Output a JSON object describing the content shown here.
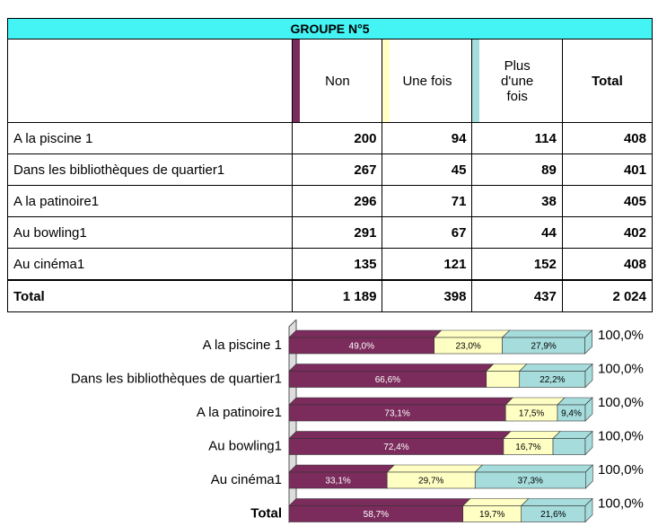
{
  "table": {
    "title": "GROUPE N°5",
    "columns": [
      "Non",
      "Une fois",
      "Plus d'une fois",
      "Total"
    ],
    "rows": [
      {
        "label": "A la piscine 1",
        "cells": [
          "200",
          "94",
          "114",
          "408"
        ]
      },
      {
        "label": "Dans les bibliothèques de quartier1",
        "cells": [
          "267",
          "45",
          "89",
          "401"
        ]
      },
      {
        "label": "A la patinoire1",
        "cells": [
          "296",
          "71",
          "38",
          "405"
        ]
      },
      {
        "label": "Au bowling1",
        "cells": [
          "291",
          "67",
          "44",
          "402"
        ]
      },
      {
        "label": "Au cinéma1",
        "cells": [
          "135",
          "121",
          "152",
          "408"
        ]
      }
    ],
    "total_row": {
      "label": "Total",
      "cells": [
        "1 189",
        "398",
        "437",
        "2 024"
      ]
    }
  },
  "chart_data": {
    "type": "bar",
    "orientation": "horizontal",
    "stacked": true,
    "categories": [
      "A la piscine 1",
      "Dans les bibliothèques de quartier1",
      "A la patinoire1",
      "Au bowling1",
      "Au cinéma1",
      "Total"
    ],
    "xlim": [
      0,
      100
    ],
    "series": [
      {
        "name": "Non",
        "color": "#7b2c5c",
        "values": [
          49.0,
          66.6,
          73.1,
          72.4,
          33.1,
          58.7
        ],
        "value_labels": [
          "49,0%",
          "66,6%",
          "73,1%",
          "72,4%",
          "33,1%",
          "58,7%"
        ]
      },
      {
        "name": "Une fois",
        "color": "#ffffc4",
        "values": [
          23.0,
          11.2,
          17.5,
          16.7,
          29.7,
          19.7
        ],
        "value_labels": [
          "23,0%",
          null,
          "17,5%",
          "16,7%",
          "29,7%",
          "19,7%"
        ]
      },
      {
        "name": "Plus d'une fois",
        "color": "#a6dcdc",
        "values": [
          27.9,
          22.2,
          9.4,
          10.9,
          37.3,
          21.6
        ],
        "value_labels": [
          "27,9%",
          "22,2%",
          "9,4%",
          null,
          "37,3%",
          "21,6%"
        ]
      }
    ],
    "totals": [
      100,
      100,
      100,
      100,
      100,
      100
    ],
    "total_labels": [
      "100,0%",
      "100,0%",
      "100,0%",
      "100,0%",
      "100,0%",
      "100,0%"
    ]
  }
}
